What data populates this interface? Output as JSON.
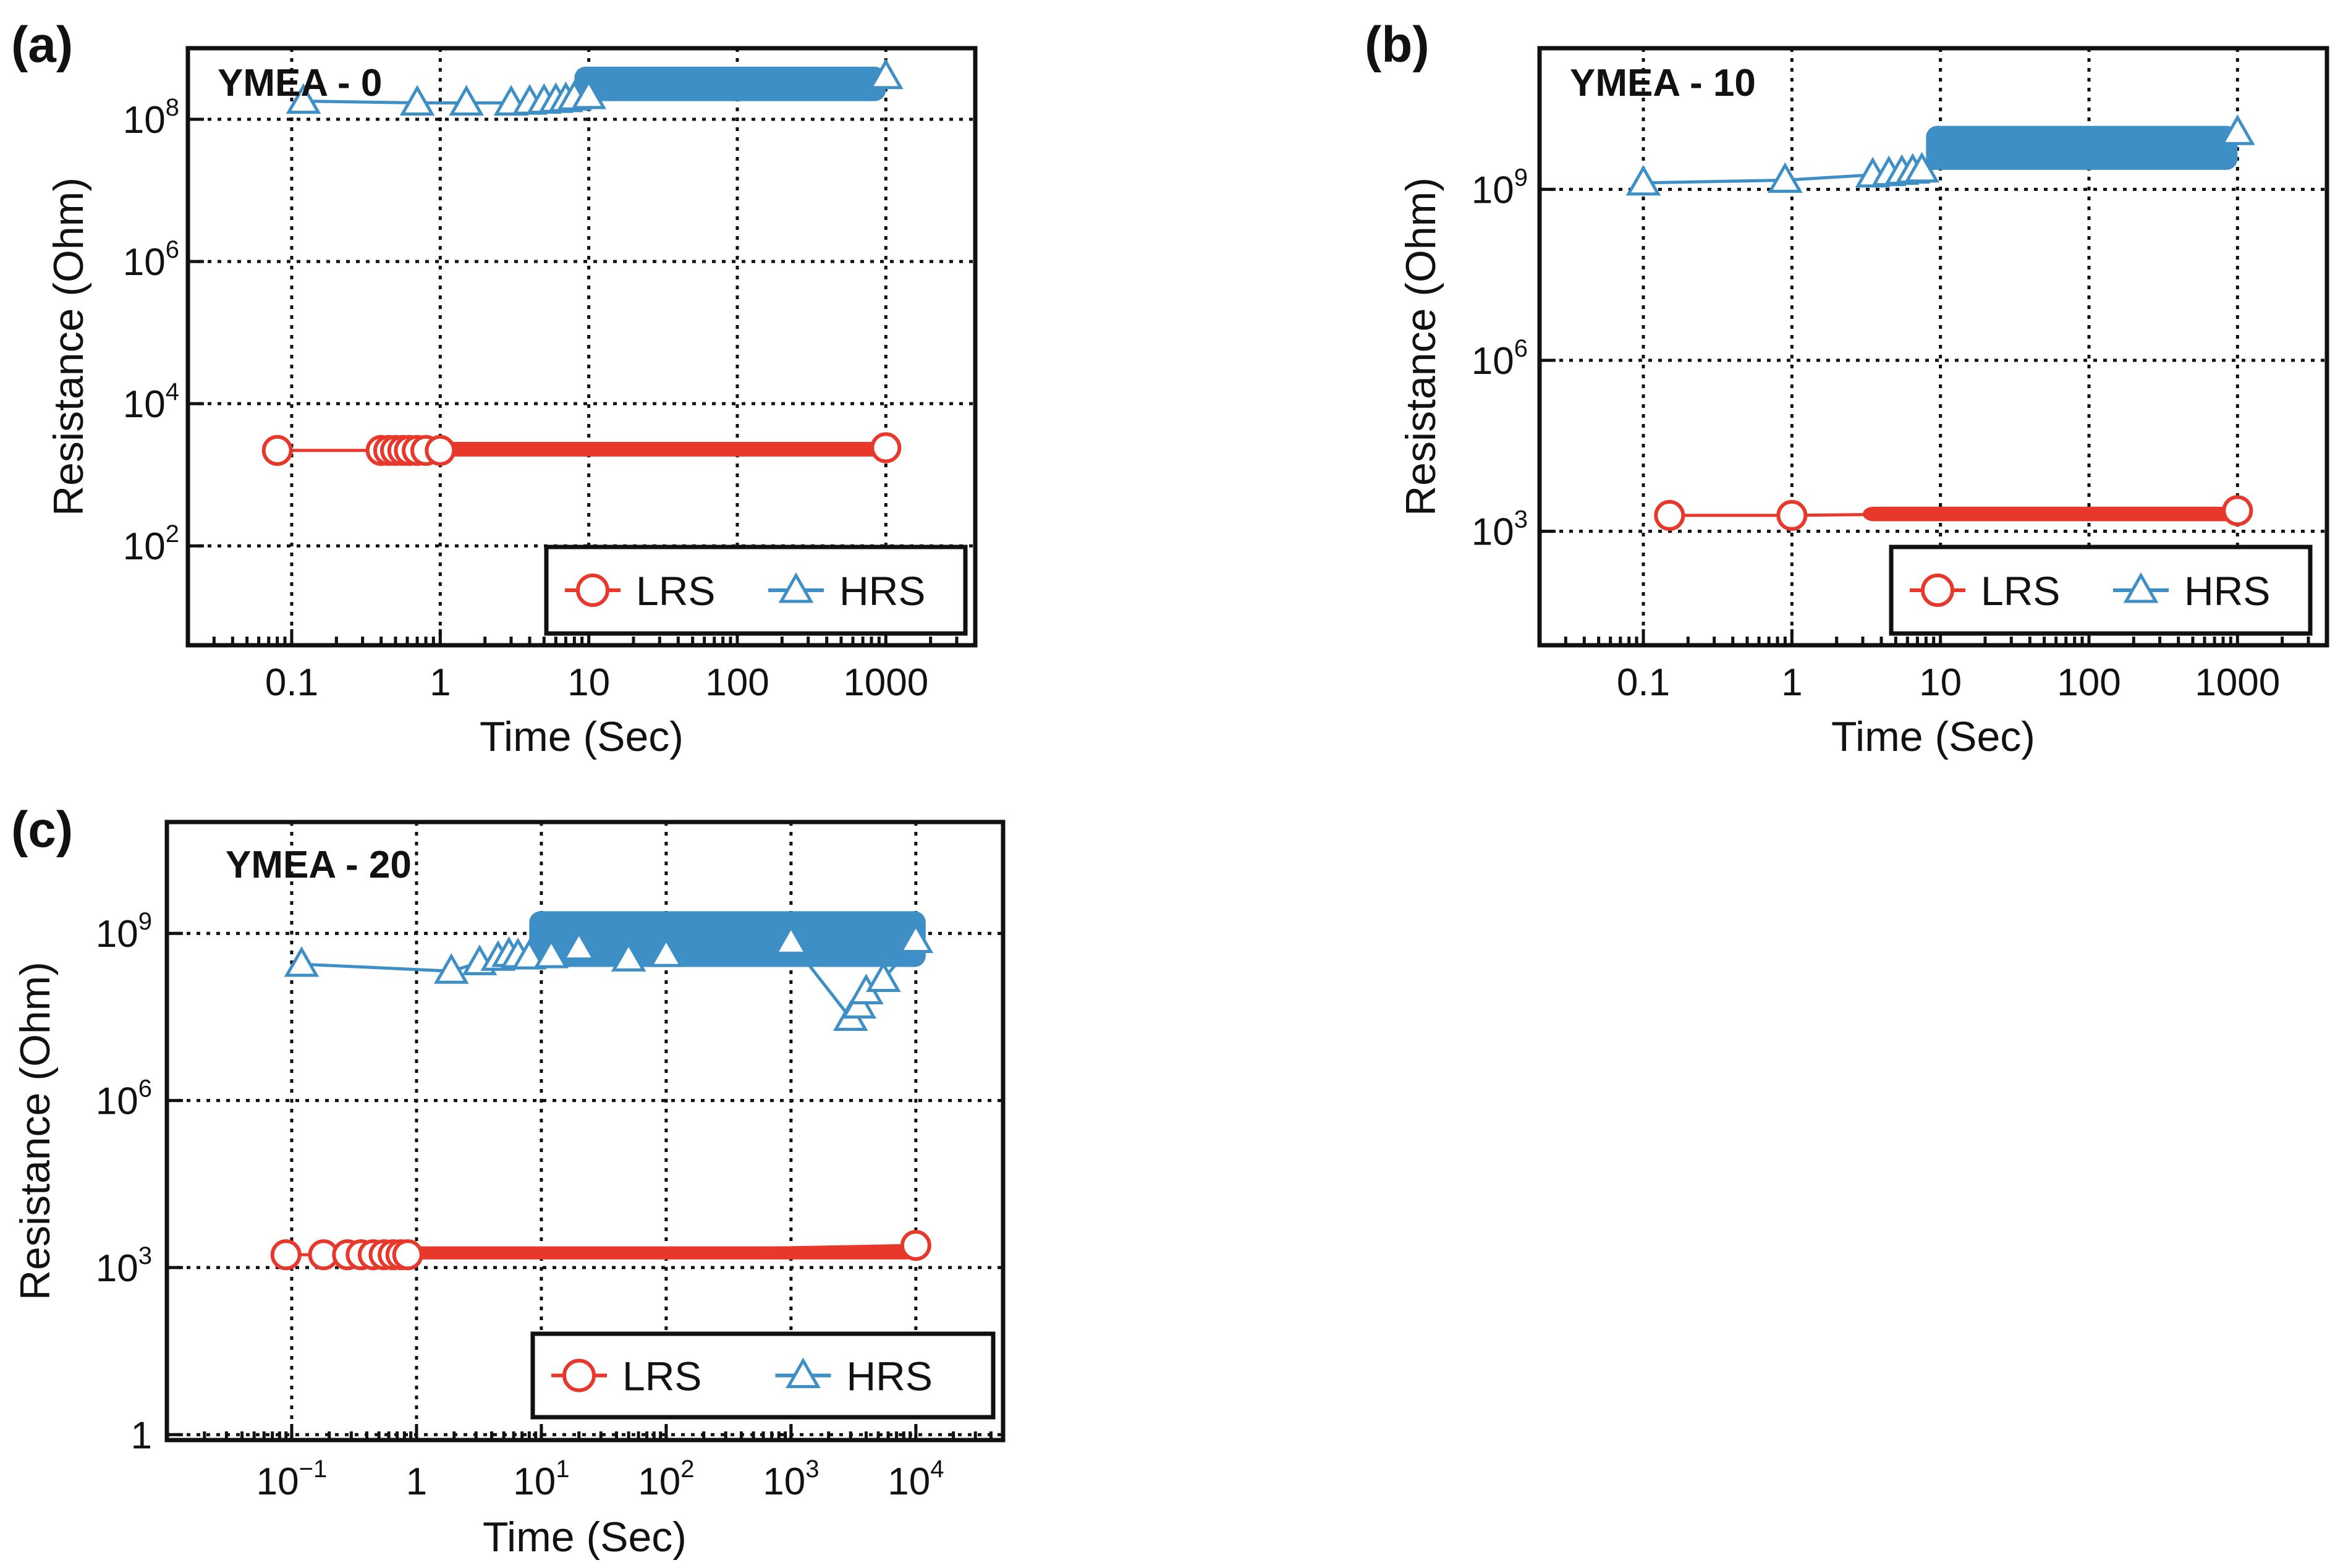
{
  "chart_data": [
    {
      "panel": "(a)",
      "type": "scatter",
      "sample": "YMEA - 0",
      "xscale": "log",
      "yscale": "log",
      "xlim": [
        0.02,
        4000
      ],
      "ylim": [
        4,
        1000000000.0
      ],
      "xticks": [
        {
          "value": 0.1,
          "mant": "0.1",
          "exp": ""
        },
        {
          "value": 1,
          "mant": "1",
          "exp": ""
        },
        {
          "value": 10,
          "mant": "10",
          "exp": ""
        },
        {
          "value": 100,
          "mant": "100",
          "exp": ""
        },
        {
          "value": 1000,
          "mant": "1000",
          "exp": ""
        }
      ],
      "yticks": [
        {
          "value": 100,
          "mant": "10",
          "exp": "2"
        },
        {
          "value": 10000,
          "mant": "10",
          "exp": "4"
        },
        {
          "value": 1000000,
          "mant": "10",
          "exp": "6"
        },
        {
          "value": 100000000,
          "mant": "10",
          "exp": "8"
        }
      ],
      "xlabel": "Time (Sec)",
      "ylabel": "Resistance (Ohm)",
      "grid": true,
      "legend_position": "bottom-right",
      "series": [
        {
          "name": "LRS",
          "marker": "circle",
          "color": "#e8382b",
          "x": [
            0.08,
            0.4,
            0.45,
            0.5,
            0.56,
            0.62,
            0.7,
            0.8,
            1,
            1000
          ],
          "y": [
            2200,
            2200,
            2200,
            2200,
            2200,
            2200,
            2200,
            2200,
            2200,
            2400
          ],
          "band": {
            "x_from": 0.8,
            "x_to": 1000,
            "y_low": 1800,
            "y_high": 2900
          }
        },
        {
          "name": "HRS",
          "marker": "triangle",
          "color": "#3d8fc6",
          "x": [
            0.12,
            0.7,
            1.5,
            3,
            4,
            5,
            6,
            7,
            8,
            10,
            1000
          ],
          "y": [
            180000000,
            170000000,
            170000000,
            170000000,
            175000000,
            180000000,
            185000000,
            190000000,
            200000000,
            210000000,
            400000000
          ],
          "band": {
            "x_from": 8,
            "x_to": 1000,
            "y_low": 180000000,
            "y_high": 550000000
          }
        }
      ]
    },
    {
      "panel": "(b)",
      "type": "scatter",
      "sample": "YMEA - 10",
      "xscale": "log",
      "yscale": "log",
      "xlim": [
        0.02,
        4000
      ],
      "ylim": [
        10,
        300000000000.0
      ],
      "xticks": [
        {
          "value": 0.1,
          "mant": "0.1",
          "exp": ""
        },
        {
          "value": 1,
          "mant": "1",
          "exp": ""
        },
        {
          "value": 10,
          "mant": "10",
          "exp": ""
        },
        {
          "value": 100,
          "mant": "100",
          "exp": ""
        },
        {
          "value": 1000,
          "mant": "1000",
          "exp": ""
        }
      ],
      "yticks": [
        {
          "value": 1000,
          "mant": "10",
          "exp": "3"
        },
        {
          "value": 1000000,
          "mant": "10",
          "exp": "6"
        },
        {
          "value": 1000000000,
          "mant": "10",
          "exp": "9"
        }
      ],
      "xlabel": "Time (Sec)",
      "ylabel": "Resistance (Ohm)",
      "grid": true,
      "legend_position": "bottom-right",
      "series": [
        {
          "name": "LRS",
          "marker": "circle",
          "color": "#e8382b",
          "x": [
            0.15,
            1,
            1000
          ],
          "y": [
            1900,
            1900,
            2300
          ],
          "band": {
            "x_from": 3,
            "x_to": 1000,
            "y_low": 1500,
            "y_high": 2700
          }
        },
        {
          "name": "HRS",
          "marker": "triangle",
          "color": "#3d8fc6",
          "x": [
            0.1,
            0.9,
            3.5,
            4.5,
            5.5,
            6.5,
            7.5,
            1000
          ],
          "y": [
            1300000000,
            1450000000,
            1800000000,
            1900000000,
            2000000000,
            2100000000,
            2200000000,
            10000000000
          ],
          "band": {
            "x_from": 8,
            "x_to": 1000,
            "y_low": 2200000000,
            "y_high": 13000000000
          }
        }
      ]
    },
    {
      "panel": "(c)",
      "type": "scatter",
      "sample": "YMEA - 20",
      "xscale": "log",
      "yscale": "log",
      "xlim": [
        0.01,
        50000
      ],
      "ylim": [
        0.8,
        100000000000.0
      ],
      "xticks": [
        {
          "value": 0.1,
          "mant": "10",
          "exp": "−1"
        },
        {
          "value": 1,
          "mant": "1",
          "exp": ""
        },
        {
          "value": 10,
          "mant": "10",
          "exp": "1"
        },
        {
          "value": 100,
          "mant": "10",
          "exp": "2"
        },
        {
          "value": 1000,
          "mant": "10",
          "exp": "3"
        },
        {
          "value": 10000,
          "mant": "10",
          "exp": "4"
        }
      ],
      "yticks": [
        {
          "value": 1,
          "mant": "1",
          "exp": ""
        },
        {
          "value": 1000,
          "mant": "10",
          "exp": "3"
        },
        {
          "value": 1000000,
          "mant": "10",
          "exp": "6"
        },
        {
          "value": 1000000000,
          "mant": "10",
          "exp": "9"
        }
      ],
      "xlabel": "Time (Sec)",
      "ylabel": "Resistance (Ohm)",
      "grid": true,
      "legend_position": "bottom-right",
      "series": [
        {
          "name": "LRS",
          "marker": "circle",
          "color": "#e8382b",
          "x": [
            0.09,
            0.18,
            0.28,
            0.36,
            0.45,
            0.55,
            0.65,
            0.75,
            0.85,
            10000
          ],
          "y": [
            1700,
            1700,
            1700,
            1700,
            1700,
            1700,
            1700,
            1700,
            1700,
            2500
          ],
          "band": {
            "x_from": 0.85,
            "x_to": 10000,
            "y_low": 1400,
            "y_high": 2400
          }
        },
        {
          "name": "HRS",
          "marker": "triangle",
          "color": "#3d8fc6",
          "x": [
            0.12,
            1.9,
            3.2,
            4.5,
            5.5,
            6.5,
            8,
            12,
            20,
            50,
            100,
            1000,
            3000,
            3500,
            4000,
            5500,
            10000
          ],
          "y": [
            280000000,
            210000000,
            300000000,
            360000000,
            420000000,
            400000000,
            380000000,
            400000000,
            550000000,
            350000000,
            420000000,
            700000000,
            30000000,
            50000000,
            90000000,
            150000000,
            750000000
          ],
          "band": {
            "x_from": 8,
            "x_to": 12000,
            "y_low": 250000000,
            "y_high": 2500000000
          }
        }
      ]
    }
  ],
  "panels_layout": [
    "a",
    "b",
    "c"
  ]
}
